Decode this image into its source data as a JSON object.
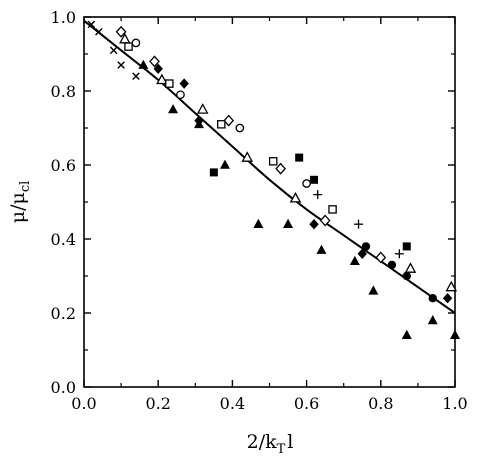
{
  "chart_data": {
    "type": "scatter",
    "title": "",
    "xlabel": "2/k",
    "xlabel_sub": "T",
    "xlabel_tail": "l",
    "ylabel": "μ/μ",
    "ylabel_sub": "cl",
    "xlim": [
      0.0,
      1.0
    ],
    "ylim": [
      0.0,
      1.0
    ],
    "xticks": [
      0.0,
      0.2,
      0.4,
      0.6,
      0.8,
      1.0
    ],
    "yticks": [
      0.0,
      0.2,
      0.4,
      0.6,
      0.8,
      1.0
    ],
    "xtick_labels": [
      "0.0",
      "0.2",
      "0.4",
      "0.6",
      "0.8",
      "1.0"
    ],
    "ytick_labels": [
      "0.0",
      "0.2",
      "0.4",
      "0.6",
      "0.8",
      "1.0"
    ],
    "grid": false,
    "legend": "none",
    "series": [
      {
        "marker": "cross",
        "color": "#000000",
        "points": [
          [
            0.02,
            0.98
          ],
          [
            0.04,
            0.96
          ],
          [
            0.08,
            0.91
          ],
          [
            0.1,
            0.87
          ],
          [
            0.14,
            0.84
          ],
          [
            0.63,
            0.52
          ],
          [
            0.74,
            0.44
          ],
          [
            0.85,
            0.36
          ]
        ]
      },
      {
        "marker": "open-diamond",
        "color": "#000000",
        "points": [
          [
            0.1,
            0.96
          ],
          [
            0.19,
            0.88
          ],
          [
            0.39,
            0.72
          ],
          [
            0.53,
            0.59
          ],
          [
            0.65,
            0.45
          ],
          [
            0.8,
            0.35
          ]
        ]
      },
      {
        "marker": "open-triangle",
        "color": "#000000",
        "points": [
          [
            0.11,
            0.94
          ],
          [
            0.21,
            0.83
          ],
          [
            0.32,
            0.75
          ],
          [
            0.44,
            0.62
          ],
          [
            0.57,
            0.51
          ],
          [
            0.88,
            0.32
          ],
          [
            0.99,
            0.27
          ]
        ]
      },
      {
        "marker": "open-square",
        "color": "#000000",
        "points": [
          [
            0.12,
            0.92
          ],
          [
            0.23,
            0.82
          ],
          [
            0.37,
            0.71
          ],
          [
            0.51,
            0.61
          ],
          [
            0.67,
            0.48
          ]
        ]
      },
      {
        "marker": "open-circle",
        "color": "#000000",
        "points": [
          [
            0.14,
            0.93
          ],
          [
            0.26,
            0.79
          ],
          [
            0.42,
            0.7
          ],
          [
            0.6,
            0.55
          ]
        ]
      },
      {
        "marker": "filled-diamond",
        "color": "#000000",
        "points": [
          [
            0.2,
            0.86
          ],
          [
            0.27,
            0.82
          ],
          [
            0.31,
            0.72
          ],
          [
            0.62,
            0.44
          ],
          [
            0.75,
            0.36
          ],
          [
            0.98,
            0.24
          ]
        ]
      },
      {
        "marker": "filled-circle",
        "color": "#000000",
        "points": [
          [
            0.76,
            0.38
          ],
          [
            0.83,
            0.33
          ],
          [
            0.87,
            0.3
          ],
          [
            0.94,
            0.24
          ]
        ]
      },
      {
        "marker": "filled-square",
        "color": "#000000",
        "points": [
          [
            0.35,
            0.58
          ],
          [
            0.58,
            0.62
          ],
          [
            0.62,
            0.56
          ],
          [
            0.87,
            0.38
          ]
        ]
      },
      {
        "marker": "filled-triangle",
        "color": "#000000",
        "points": [
          [
            0.16,
            0.87
          ],
          [
            0.24,
            0.75
          ],
          [
            0.31,
            0.71
          ],
          [
            0.38,
            0.6
          ],
          [
            0.47,
            0.44
          ],
          [
            0.55,
            0.44
          ],
          [
            0.64,
            0.37
          ],
          [
            0.73,
            0.34
          ],
          [
            0.78,
            0.26
          ],
          [
            0.87,
            0.14
          ],
          [
            0.94,
            0.18
          ],
          [
            1.0,
            0.14
          ]
        ]
      }
    ],
    "fit_curve": {
      "style": "solid",
      "color": "#000000",
      "points": [
        [
          0.0,
          0.99
        ],
        [
          0.1,
          0.91
        ],
        [
          0.2,
          0.83
        ],
        [
          0.3,
          0.74
        ],
        [
          0.4,
          0.65
        ],
        [
          0.5,
          0.56
        ],
        [
          0.6,
          0.48
        ],
        [
          0.7,
          0.41
        ],
        [
          0.8,
          0.34
        ],
        [
          0.9,
          0.27
        ],
        [
          1.0,
          0.2
        ]
      ]
    }
  }
}
